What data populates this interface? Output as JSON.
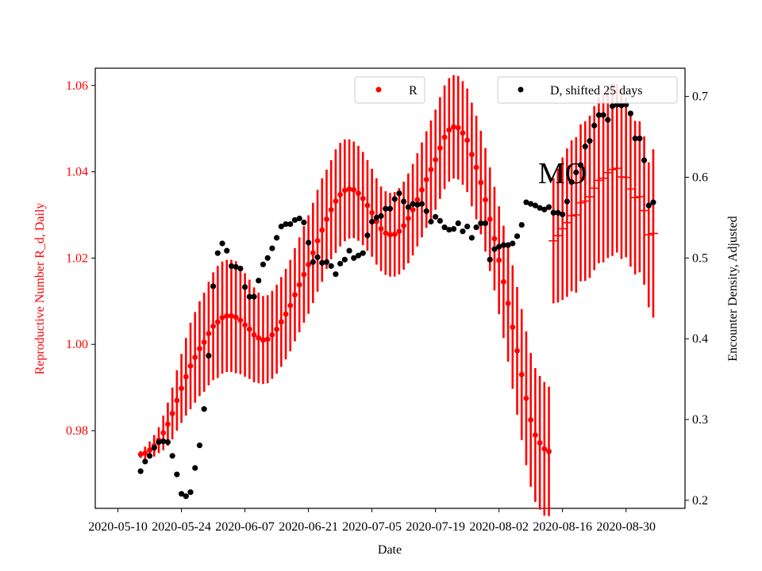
{
  "chart_data": {
    "type": "scatter",
    "annotation": "MO",
    "xlabel": "Date",
    "ylabel_left": "Reproductive Number R_d, Daily",
    "ylabel_right": "Encounter Density, Adjusted",
    "x_ticks": [
      "2020-05-10",
      "2020-05-24",
      "2020-06-07",
      "2020-06-21",
      "2020-07-05",
      "2020-07-19",
      "2020-08-02",
      "2020-08-16",
      "2020-08-30"
    ],
    "xlim": [
      "2020-05-05",
      "2020-09-12"
    ],
    "y_left_ticks": [
      "0.98",
      "1.00",
      "1.02",
      "1.04",
      "1.06"
    ],
    "y_left_lim": [
      0.962,
      1.064
    ],
    "y_right_ticks": [
      "0.2",
      "0.3",
      "0.4",
      "0.5",
      "0.6",
      "0.7"
    ],
    "y_right_lim": [
      0.19,
      0.735
    ],
    "colors": {
      "R": "#ff0000",
      "D": "#000000",
      "left_axis": "#ff0000"
    },
    "legend_left": {
      "label": "R",
      "placement": "top-center"
    },
    "legend_right": {
      "label": "D, shifted 25 days",
      "placement": "top-right"
    },
    "R_series": {
      "name": "R",
      "start_date": "2020-05-15",
      "values": [
        0.9745,
        0.9748,
        0.9755,
        0.9765,
        0.9778,
        0.9795,
        0.9815,
        0.984,
        0.987,
        0.9898,
        0.9925,
        0.995,
        0.997,
        0.999,
        1.0005,
        1.0025,
        1.0042,
        1.0052,
        1.0062,
        1.0066,
        1.0066,
        1.0063,
        1.0056,
        1.0045,
        1.0035,
        1.0022,
        1.0015,
        1.001,
        1.0012,
        1.0022,
        1.0035,
        1.0052,
        1.007,
        1.009,
        1.0115,
        1.0138,
        1.0162,
        1.0185,
        1.0212,
        1.024,
        1.0265,
        1.029,
        1.0312,
        1.0332,
        1.0347,
        1.0357,
        1.036,
        1.0358,
        1.035,
        1.0338,
        1.0322,
        1.0305,
        1.0285,
        1.0268,
        1.0258,
        1.0254,
        1.0255,
        1.0262,
        1.0275,
        1.0292,
        1.0312,
        1.0335,
        1.0358,
        1.0382,
        1.0405,
        1.0428,
        1.0455,
        1.048,
        1.0497,
        1.0504,
        1.0502,
        1.049,
        1.0473,
        1.044,
        1.041,
        1.0375,
        1.0335,
        1.029,
        1.0245,
        1.0195,
        1.0145,
        1.0095,
        1.004,
        0.9985,
        0.993,
        0.9875,
        0.9825,
        0.979,
        0.9772,
        0.9758,
        0.9752,
        1.024,
        1.0252,
        1.0268,
        1.0282,
        1.0298,
        1.03,
        1.0328,
        1.0332,
        1.0342,
        1.0362,
        1.038,
        1.0385,
        1.0398,
        1.0405,
        1.0408,
        1.0388,
        1.0387,
        1.036,
        1.034,
        1.0342,
        1.031,
        1.0254,
        1.0257
      ],
      "err": [
        0.0008,
        0.0015,
        0.002,
        0.0025,
        0.003,
        0.004,
        0.005,
        0.006,
        0.007,
        0.008,
        0.009,
        0.01,
        0.0105,
        0.011,
        0.0115,
        0.012,
        0.0125,
        0.013,
        0.013,
        0.013,
        0.013,
        0.013,
        0.0125,
        0.012,
        0.0115,
        0.011,
        0.0105,
        0.0102,
        0.0102,
        0.0102,
        0.0103,
        0.0104,
        0.0105,
        0.0106,
        0.0108,
        0.011,
        0.0112,
        0.0114,
        0.0116,
        0.0118,
        0.012,
        0.0115,
        0.0115,
        0.012,
        0.012,
        0.0118,
        0.0115,
        0.0112,
        0.011,
        0.0108,
        0.0105,
        0.0102,
        0.01,
        0.0098,
        0.0097,
        0.0097,
        0.0098,
        0.01,
        0.0102,
        0.0104,
        0.0106,
        0.0108,
        0.011,
        0.0112,
        0.0114,
        0.0116,
        0.0118,
        0.012,
        0.012,
        0.012,
        0.012,
        0.012,
        0.012,
        0.012,
        0.012,
        0.012,
        0.012,
        0.012,
        0.012,
        0.0125,
        0.013,
        0.0135,
        0.0143,
        0.0148,
        0.0152,
        0.0155,
        0.0155,
        0.0155,
        0.0155,
        0.0155,
        0.015,
        0.0145,
        0.0155,
        0.0165,
        0.0172,
        0.0175,
        0.018,
        0.0182,
        0.0185,
        0.0188,
        0.019,
        0.0192,
        0.0195,
        0.0198,
        0.02,
        0.0195,
        0.019,
        0.0185,
        0.018,
        0.0178,
        0.0175,
        0.0172,
        0.0168,
        0.0195
      ],
      "styles": [
        "dot",
        "dot",
        "dot",
        "dot",
        "dot",
        "dot",
        "dot",
        "dot",
        "dot",
        "dot",
        "dot",
        "dot",
        "dot",
        "dot",
        "dot",
        "dot",
        "dot",
        "dot",
        "dot",
        "dot",
        "dot",
        "dot",
        "dot",
        "dot",
        "dot",
        "dot",
        "dot",
        "dot",
        "dot",
        "dot",
        "dot",
        "dot",
        "dot",
        "dot",
        "dot",
        "dot",
        "dot",
        "dot",
        "dot",
        "dot",
        "dot",
        "dot",
        "dot",
        "dot",
        "dot",
        "dot",
        "dot",
        "dot",
        "dot",
        "dot",
        "dot",
        "dot",
        "dot",
        "dot",
        "dot",
        "dot",
        "dot",
        "dot",
        "dot",
        "dot",
        "dot",
        "dot",
        "dot",
        "dot",
        "dot",
        "dot",
        "dot",
        "dot",
        "dot",
        "dot",
        "dot",
        "dot",
        "dot",
        "dot",
        "dot",
        "dot",
        "dot",
        "dot",
        "dot",
        "dot",
        "dot",
        "dot",
        "dot",
        "dot",
        "dot",
        "dot",
        "dot",
        "dot",
        "dot",
        "dot",
        "dot",
        "tick",
        "tick",
        "tick",
        "tick",
        "tick",
        "tick",
        "tick",
        "tick",
        "tick",
        "tick",
        "tick",
        "tick",
        "tick",
        "tick",
        "tick",
        "tick",
        "tick",
        "tick",
        "tick",
        "tick",
        "tick",
        "tick",
        "tick"
      ]
    },
    "D_series": {
      "name": "D, shifted 25 days",
      "start_date": "2020-05-15",
      "values": [
        0.236,
        0.248,
        0.255,
        0.265,
        0.272,
        0.273,
        0.272,
        0.255,
        0.232,
        0.208,
        0.205,
        0.21,
        0.24,
        0.268,
        0.313,
        0.379,
        0.465,
        0.506,
        0.518,
        0.509,
        0.49,
        0.489,
        0.487,
        0.464,
        0.452,
        0.452,
        0.472,
        0.492,
        0.5,
        0.512,
        0.525,
        0.539,
        0.542,
        0.542,
        0.547,
        0.549,
        0.544,
        0.519,
        0.495,
        0.501,
        0.494,
        0.495,
        0.49,
        0.48,
        0.493,
        0.498,
        0.509,
        0.5,
        0.503,
        0.506,
        0.528,
        0.545,
        0.55,
        0.552,
        0.561,
        0.561,
        0.573,
        0.58,
        0.57,
        0.563,
        0.567,
        0.566,
        0.567,
        0.558,
        0.545,
        0.551,
        0.546,
        0.538,
        0.535,
        0.536,
        0.543,
        0.533,
        0.539,
        0.525,
        0.538,
        0.543,
        0.543,
        0.498,
        0.511,
        0.514,
        0.516,
        0.516,
        0.518,
        0.527,
        0.541,
        0.569,
        0.567,
        0.565,
        0.562,
        0.56,
        0.563,
        0.556,
        0.556,
        0.554,
        0.57,
        0.594,
        0.606,
        0.615,
        0.638,
        0.645,
        0.664,
        0.677,
        0.677,
        0.671,
        0.688,
        0.69,
        0.689,
        0.69,
        0.679,
        0.648,
        0.648,
        0.621,
        0.565,
        0.569
      ]
    }
  }
}
